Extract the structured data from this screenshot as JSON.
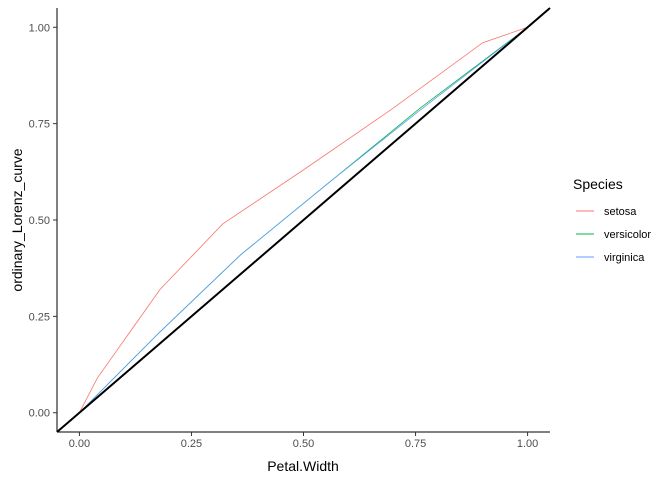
{
  "chart_data": {
    "type": "line",
    "title": "",
    "xlabel": "Petal.Width",
    "ylabel": "ordinary_Lorenz_curve",
    "xlim": [
      -0.05,
      1.05
    ],
    "ylim": [
      -0.05,
      1.05
    ],
    "x_ticks": [
      0,
      0.25,
      0.5,
      0.75,
      1
    ],
    "x_tick_labels": [
      "0.00",
      "0.25",
      "0.50",
      "0.75",
      "1.00"
    ],
    "y_ticks": [
      0,
      0.25,
      0.5,
      0.75,
      1
    ],
    "y_tick_labels": [
      "0.00",
      "0.25",
      "0.50",
      "0.75",
      "1.00"
    ],
    "grid": false,
    "legend": {
      "title": "Species",
      "placement": "right"
    },
    "series": [
      {
        "name": "setosa",
        "color": "#F8766D",
        "x": [
          0,
          0.04,
          0.18,
          0.32,
          0.5,
          0.7,
          0.9,
          1
        ],
        "y": [
          0,
          0.09,
          0.32,
          0.49,
          0.63,
          0.79,
          0.96,
          1
        ]
      },
      {
        "name": "versicolor",
        "color": "#00BA38",
        "x": [
          0,
          0.18,
          0.36,
          0.56,
          0.76,
          1
        ],
        "y": [
          0,
          0.21,
          0.41,
          0.6,
          0.79,
          1
        ]
      },
      {
        "name": "virginica",
        "color": "#619CFF",
        "x": [
          0,
          0.18,
          0.36,
          0.56,
          0.76,
          1
        ],
        "y": [
          0,
          0.21,
          0.41,
          0.6,
          0.785,
          1
        ]
      }
    ],
    "reference_line": {
      "color": "#000000",
      "x": [
        -0.05,
        1.05
      ],
      "y": [
        -0.05,
        1.05
      ]
    }
  }
}
